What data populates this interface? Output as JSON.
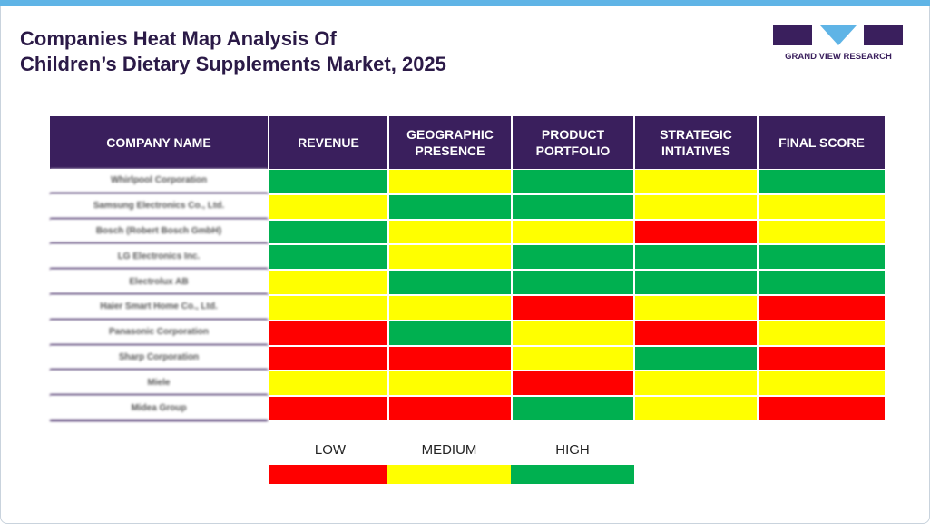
{
  "header": {
    "title": [
      "Companies Heat Map Analysis Of",
      "Children’s Dietary Supplements Market, 2025"
    ],
    "logo": "GRAND VIEW RESEARCH"
  },
  "table": {
    "columns": [
      "COMPANY NAME",
      "REVENUE",
      "GEOGRAPHIC PRESENCE",
      "PRODUCT PORTFOLIO",
      "STRATEGIC INTIATIVES",
      "FINAL SCORE"
    ],
    "rows": [
      {
        "company": "Whirlpool Corporation",
        "levels": [
          2,
          1,
          2,
          1,
          2
        ]
      },
      {
        "company": "Samsung Electronics Co., Ltd.",
        "levels": [
          1,
          2,
          2,
          1,
          1
        ]
      },
      {
        "company": "Bosch (Robert Bosch GmbH)",
        "levels": [
          2,
          1,
          1,
          0,
          1
        ]
      },
      {
        "company": "LG Electronics Inc.",
        "levels": [
          2,
          1,
          2,
          2,
          2
        ]
      },
      {
        "company": "Electrolux AB",
        "levels": [
          1,
          2,
          2,
          2,
          2
        ]
      },
      {
        "company": "Haier Smart Home Co., Ltd.",
        "levels": [
          1,
          1,
          0,
          1,
          0
        ]
      },
      {
        "company": "Panasonic Corporation",
        "levels": [
          0,
          2,
          1,
          0,
          1
        ]
      },
      {
        "company": "Sharp Corporation",
        "levels": [
          0,
          0,
          1,
          2,
          0
        ]
      },
      {
        "company": "Miele",
        "levels": [
          1,
          1,
          0,
          1,
          1
        ]
      },
      {
        "company": "Midea Group",
        "levels": [
          0,
          0,
          2,
          1,
          0
        ]
      }
    ]
  },
  "legend": {
    "items": [
      {
        "label": "LOW",
        "color": "#ff0000"
      },
      {
        "label": "MEDIUM",
        "color": "#ffff00"
      },
      {
        "label": "HIGH",
        "color": "#00b050"
      }
    ]
  }
}
